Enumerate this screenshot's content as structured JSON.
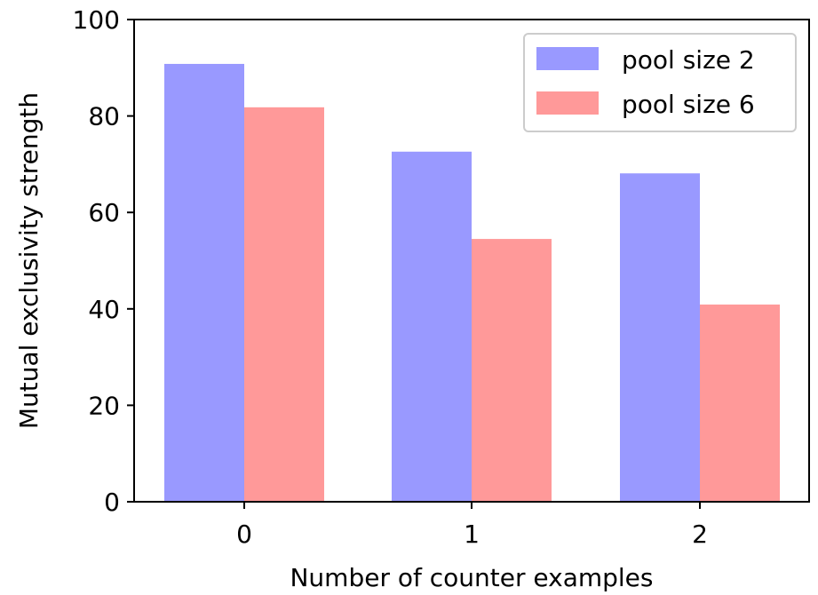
{
  "chart_data": {
    "type": "bar",
    "title": "",
    "xlabel": "Number of counter examples",
    "ylabel": "Mutual exclusivity strength",
    "categories": [
      "0",
      "1",
      "2"
    ],
    "series": [
      {
        "name": "pool size 2",
        "values": [
          90.8,
          72.6,
          68.1
        ],
        "color": "#9999ff"
      },
      {
        "name": "pool size 6",
        "values": [
          81.8,
          54.5,
          40.9
        ],
        "color": "#ff9999"
      }
    ],
    "ylim": [
      0,
      100
    ],
    "yticks": [
      0,
      20,
      40,
      60,
      80,
      100
    ],
    "ytick_labels": [
      "0",
      "20",
      "40",
      "60",
      "80",
      "100"
    ],
    "grid": false,
    "legend_position": "top-right"
  }
}
